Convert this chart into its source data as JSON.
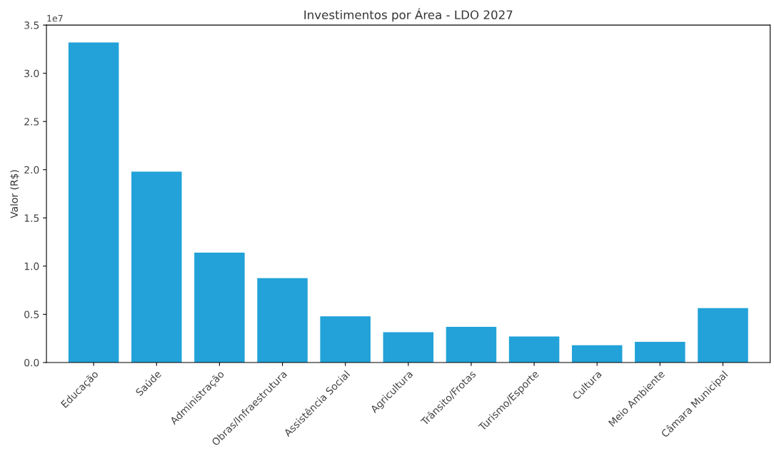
{
  "chart_data": {
    "type": "bar",
    "title": "Investimentos por Área - LDO 2027",
    "ylabel": "Valor (R$)",
    "categories": [
      "Educação",
      "Saúde",
      "Administração",
      "Obras/Infraestrutura",
      "Assistência Social",
      "Agricultura",
      "Trânsito/Frotas",
      "Turismo/Esporte",
      "Cultura",
      "Meio Ambiente",
      "Câmara Municipal"
    ],
    "values": [
      3.32,
      1.98,
      1.14,
      0.875,
      0.48,
      0.315,
      0.37,
      0.27,
      0.18,
      0.215,
      0.565
    ],
    "color": "#22a2d8",
    "ylim": [
      0.0,
      3.5
    ],
    "yticks": [
      {
        "value": 0,
        "label": "0.0"
      },
      0.5,
      {
        "value": 1,
        "label": "1.0"
      },
      1.5,
      {
        "value": 2,
        "label": "2.0"
      },
      2.5,
      {
        "value": 3,
        "label": "3.0"
      },
      3.5
    ],
    "annotations": [
      "1e7"
    ]
  }
}
